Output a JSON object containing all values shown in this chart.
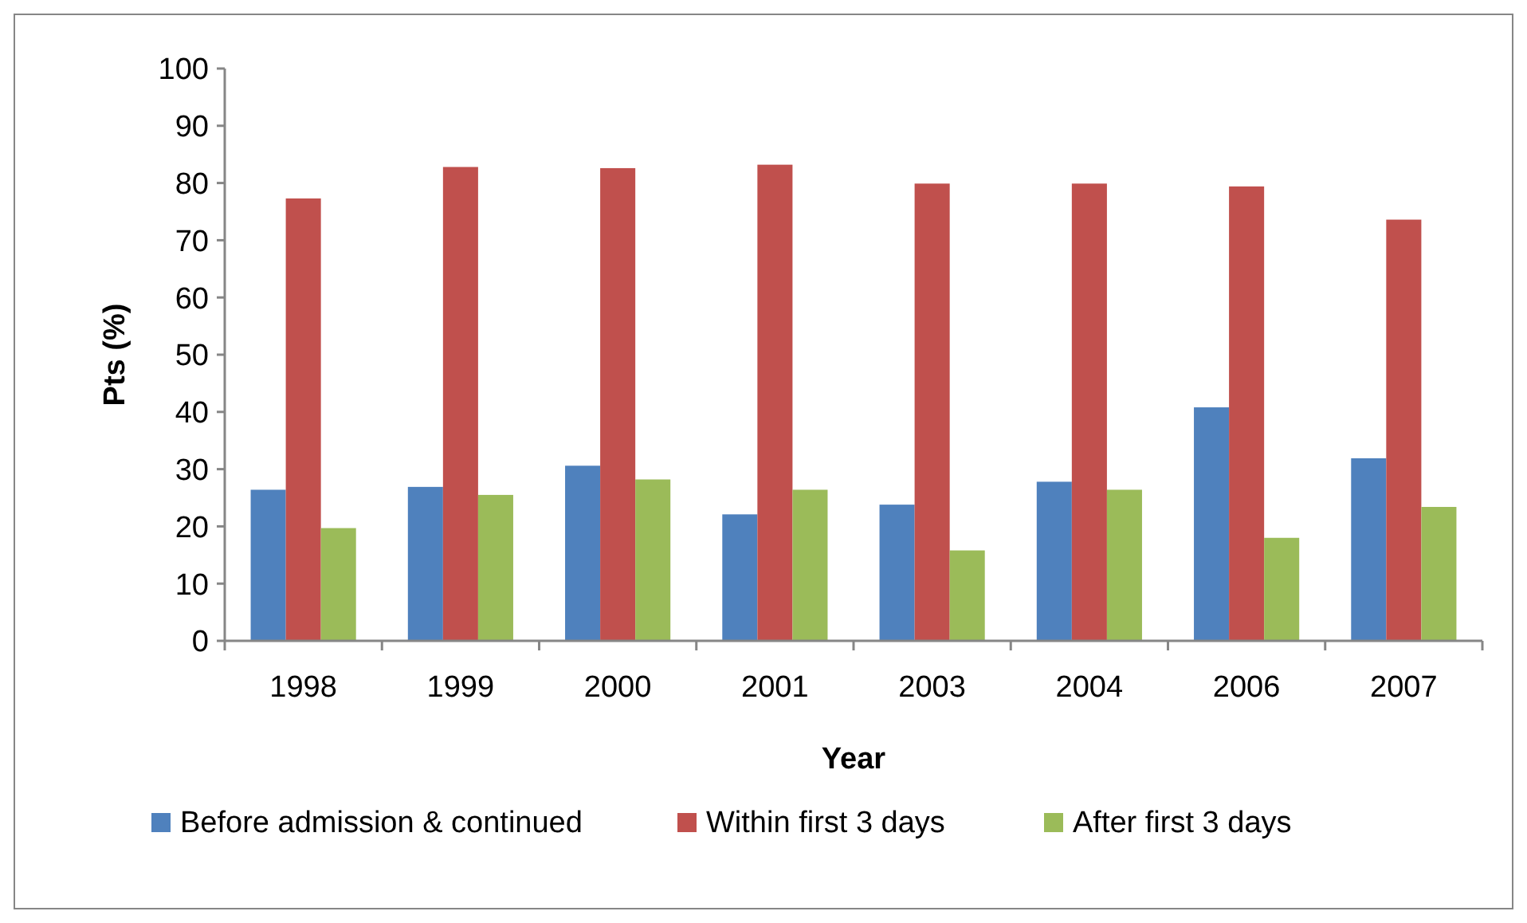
{
  "chart_data": {
    "type": "bar",
    "xlabel": "Year",
    "ylabel": "Pts (%)",
    "categories": [
      "1998",
      "1999",
      "2000",
      "2001",
      "2003",
      "2004",
      "2006",
      "2007"
    ],
    "series": [
      {
        "name": "Before admission & continued",
        "color": "#4f81bd",
        "values": [
          26.4,
          26.9,
          30.6,
          22.1,
          23.8,
          27.8,
          40.8,
          31.9
        ]
      },
      {
        "name": "Within first 3 days",
        "color": "#c0504d",
        "values": [
          77.3,
          82.8,
          82.6,
          83.2,
          79.9,
          79.9,
          79.4,
          73.6
        ]
      },
      {
        "name": "After first 3 days",
        "color": "#9bbb59",
        "values": [
          19.7,
          25.5,
          28.2,
          26.4,
          15.8,
          26.4,
          18.0,
          23.4
        ]
      }
    ],
    "ylim": [
      0,
      100
    ],
    "yticks": [
      0,
      10,
      20,
      30,
      40,
      50,
      60,
      70,
      80,
      90,
      100
    ],
    "grid": false,
    "legend": "bottom"
  }
}
